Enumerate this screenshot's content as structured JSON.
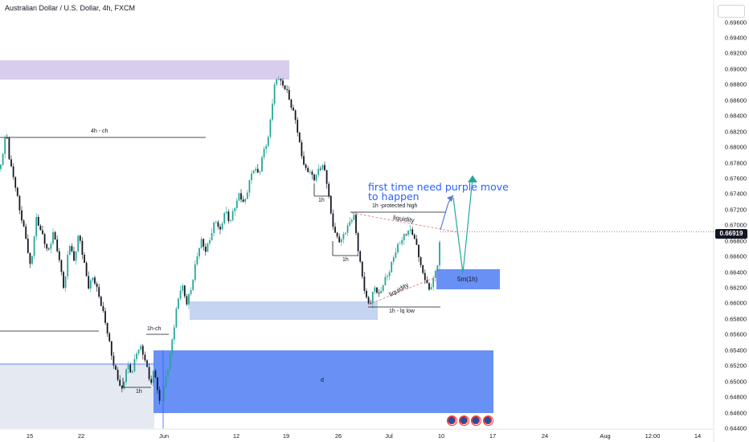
{
  "symbol_title": "Australian Dollar / U.S. Dollar, 4h, FXCM",
  "current_price_label": "0.66919",
  "annotations": {
    "ch_4h": "4h - ch",
    "protected_high": "1h -protected high",
    "liquidity_upper": "liquidity",
    "liquidity_lower": "liquidity",
    "lq_low": "1h - lq low",
    "h1_a": "1h",
    "h1_b": "1h",
    "h1_c": "1h",
    "ch_1h": "1h-ch",
    "zone_5m": "5m(1h)",
    "zone_d": "d",
    "note_line1": "first time need purple move",
    "note_line2": "to happen"
  },
  "colors": {
    "up_candle": "#26a69a",
    "down_candle": "#131722",
    "purple_zone": "#d1c4e9",
    "demand_zone_light": "#bbccee",
    "demand_zone_blue": "#6890f5",
    "note_text": "#2962ff",
    "purple_arrow": "#5b7bd1",
    "teal_arrow": "#26a69a",
    "liquidity_line": "#e57373"
  },
  "event_icons": [
    "flag-icon-au-us",
    "flag-icon-au-us",
    "flag-icon-au-us",
    "flag-icon-au-us"
  ],
  "chart_data": {
    "type": "candlestick",
    "title": "Australian Dollar / U.S. Dollar, 4h, FXCM",
    "y_ticks": [
      "0.64400",
      "0.64600",
      "0.64800",
      "0.65000",
      "0.65200",
      "0.65400",
      "0.65600",
      "0.65800",
      "0.66000",
      "0.66200",
      "0.66400",
      "0.66600",
      "0.66800",
      "0.67000",
      "0.67200",
      "0.67400",
      "0.67600",
      "0.67800",
      "0.68000",
      "0.68200",
      "0.68400",
      "0.68600",
      "0.68800",
      "0.69000",
      "0.69200",
      "0.69400",
      "0.69600"
    ],
    "x_ticks": [
      "15",
      "22",
      "Jun",
      "12",
      "19",
      "26",
      "Jul",
      "10",
      "17",
      "24",
      "Aug",
      "12:00",
      "14"
    ],
    "ylim": [
      0.644,
      0.6976
    ],
    "price_path": [
      [
        0,
        0.6772
      ],
      [
        8,
        0.6816
      ],
      [
        12,
        0.6776
      ],
      [
        18,
        0.6755
      ],
      [
        25,
        0.672
      ],
      [
        32,
        0.669
      ],
      [
        38,
        0.6645
      ],
      [
        45,
        0.6705
      ],
      [
        52,
        0.6685
      ],
      [
        60,
        0.6665
      ],
      [
        66,
        0.6695
      ],
      [
        72,
        0.667
      ],
      [
        80,
        0.6615
      ],
      [
        86,
        0.6675
      ],
      [
        92,
        0.665
      ],
      [
        98,
        0.669
      ],
      [
        104,
        0.666
      ],
      [
        110,
        0.6625
      ],
      [
        116,
        0.6635
      ],
      [
        122,
        0.661
      ],
      [
        128,
        0.6585
      ],
      [
        134,
        0.656
      ],
      [
        140,
        0.653
      ],
      [
        146,
        0.651
      ],
      [
        152,
        0.649
      ],
      [
        158,
        0.652
      ],
      [
        164,
        0.6505
      ],
      [
        170,
        0.6535
      ],
      [
        176,
        0.6545
      ],
      [
        182,
        0.6525
      ],
      [
        188,
        0.65
      ],
      [
        192,
        0.652
      ],
      [
        198,
        0.647
      ],
      [
        202,
        0.6475
      ],
      [
        206,
        0.65
      ],
      [
        210,
        0.652
      ],
      [
        215,
        0.656
      ],
      [
        220,
        0.66
      ],
      [
        226,
        0.663
      ],
      [
        232,
        0.66
      ],
      [
        238,
        0.6615
      ],
      [
        244,
        0.665
      ],
      [
        250,
        0.668
      ],
      [
        256,
        0.667
      ],
      [
        262,
        0.669
      ],
      [
        268,
        0.671
      ],
      [
        274,
        0.669
      ],
      [
        280,
        0.6715
      ],
      [
        286,
        0.67
      ],
      [
        292,
        0.6725
      ],
      [
        298,
        0.6745
      ],
      [
        304,
        0.673
      ],
      [
        310,
        0.6755
      ],
      [
        316,
        0.677
      ],
      [
        322,
        0.676
      ],
      [
        328,
        0.6795
      ],
      [
        334,
        0.6815
      ],
      [
        338,
        0.6855
      ],
      [
        342,
        0.6885
      ],
      [
        346,
        0.6893
      ],
      [
        350,
        0.688
      ],
      [
        356,
        0.687
      ],
      [
        362,
        0.685
      ],
      [
        368,
        0.6835
      ],
      [
        374,
        0.68
      ],
      [
        380,
        0.6775
      ],
      [
        386,
        0.677
      ],
      [
        390,
        0.6755
      ],
      [
        396,
        0.6765
      ],
      [
        402,
        0.6775
      ],
      [
        408,
        0.675
      ],
      [
        412,
        0.6715
      ],
      [
        418,
        0.669
      ],
      [
        424,
        0.668
      ],
      [
        430,
        0.669
      ],
      [
        436,
        0.67
      ],
      [
        440,
        0.6712
      ],
      [
        444,
        0.668
      ],
      [
        448,
        0.6655
      ],
      [
        452,
        0.663
      ],
      [
        456,
        0.661
      ],
      [
        460,
        0.66
      ],
      [
        466,
        0.662
      ],
      [
        472,
        0.6605
      ],
      [
        478,
        0.6625
      ],
      [
        484,
        0.664
      ],
      [
        490,
        0.6665
      ],
      [
        496,
        0.668
      ],
      [
        502,
        0.6685
      ],
      [
        508,
        0.669
      ],
      [
        514,
        0.6685
      ],
      [
        520,
        0.6665
      ],
      [
        526,
        0.664
      ],
      [
        530,
        0.6635
      ],
      [
        534,
        0.662
      ],
      [
        538,
        0.663
      ],
      [
        542,
        0.664
      ],
      [
        546,
        0.6655
      ],
      [
        548,
        0.6692
      ]
    ]
  }
}
